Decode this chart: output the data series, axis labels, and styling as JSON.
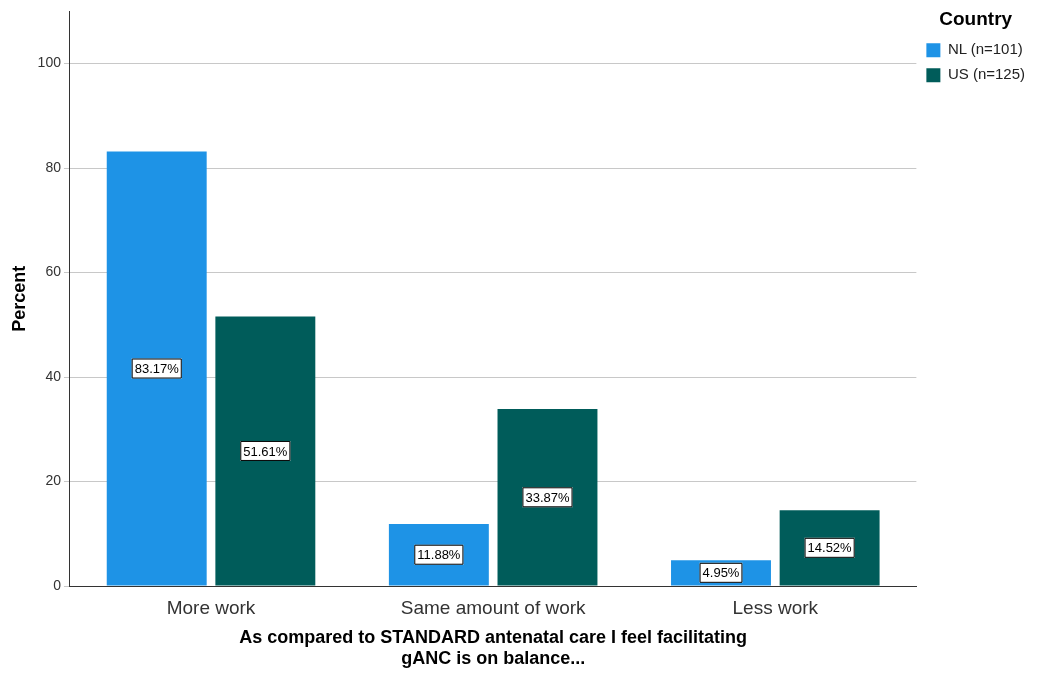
{
  "chart_data": {
    "type": "bar",
    "xlabel": "As compared to STANDARD antenatal care I feel facilitating gANC is on balance...",
    "ylabel": "Percent",
    "legend_title": "Country",
    "categories": [
      "More work",
      "Same amount of work",
      "Less work"
    ],
    "series": [
      {
        "name": "NL (n=101)",
        "color": "#1e93e6",
        "values": [
          83.17,
          11.88,
          4.95
        ],
        "value_labels": [
          "83.17%",
          "11.88%",
          "4.95%"
        ]
      },
      {
        "name": "US (n=125)",
        "color": "#005c5a",
        "values": [
          51.61,
          33.87,
          14.52
        ],
        "value_labels": [
          "51.61%",
          "33.87%",
          "14.52%"
        ]
      }
    ],
    "ylim": [
      0,
      110
    ],
    "yticks": [
      0,
      20,
      40,
      60,
      80,
      100
    ],
    "grid": "y",
    "legend": "top right"
  }
}
